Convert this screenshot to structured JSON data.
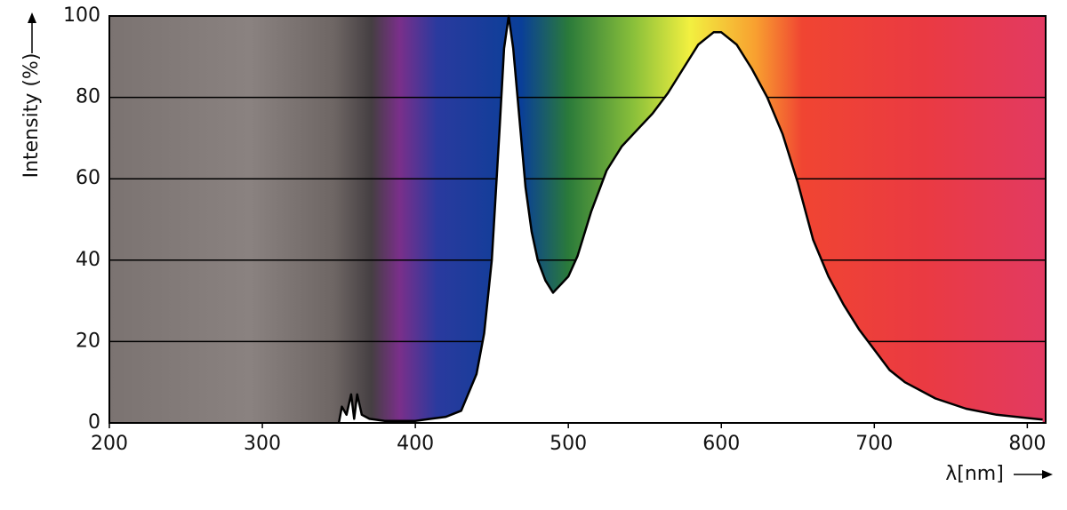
{
  "chart_data": {
    "type": "area",
    "y_label": "Intensity (%)",
    "x_label": "λ[nm]",
    "x": [
      350,
      352,
      355,
      358,
      360,
      362,
      365,
      370,
      380,
      400,
      410,
      420,
      430,
      440,
      445,
      450,
      455,
      458,
      461,
      464,
      468,
      472,
      476,
      480,
      485,
      490,
      495,
      500,
      506,
      515,
      525,
      535,
      545,
      555,
      565,
      575,
      585,
      595,
      600,
      610,
      620,
      630,
      640,
      650,
      660,
      670,
      680,
      690,
      700,
      710,
      720,
      740,
      760,
      780,
      800,
      810
    ],
    "values": [
      0,
      4,
      2,
      7,
      1,
      7,
      2,
      1,
      0.5,
      0.5,
      1,
      1.5,
      3,
      12,
      22,
      40,
      72,
      92,
      100,
      92,
      75,
      58,
      47,
      40,
      35,
      32,
      34,
      36,
      41,
      52,
      62,
      68,
      72,
      76,
      81,
      87,
      93,
      96,
      96,
      93,
      87,
      80,
      71,
      59,
      45,
      36,
      29,
      23,
      18,
      13,
      10,
      6,
      3.5,
      2,
      1.2,
      0.8
    ],
    "line_color": "#000000",
    "fill_color": "#ffffff",
    "xlim": [
      200,
      812
    ],
    "ylim": [
      0,
      100
    ],
    "xticks": [
      200,
      300,
      400,
      500,
      600,
      700,
      800
    ],
    "yticks": [
      0,
      20,
      40,
      60,
      80,
      100
    ],
    "grid": true
  }
}
